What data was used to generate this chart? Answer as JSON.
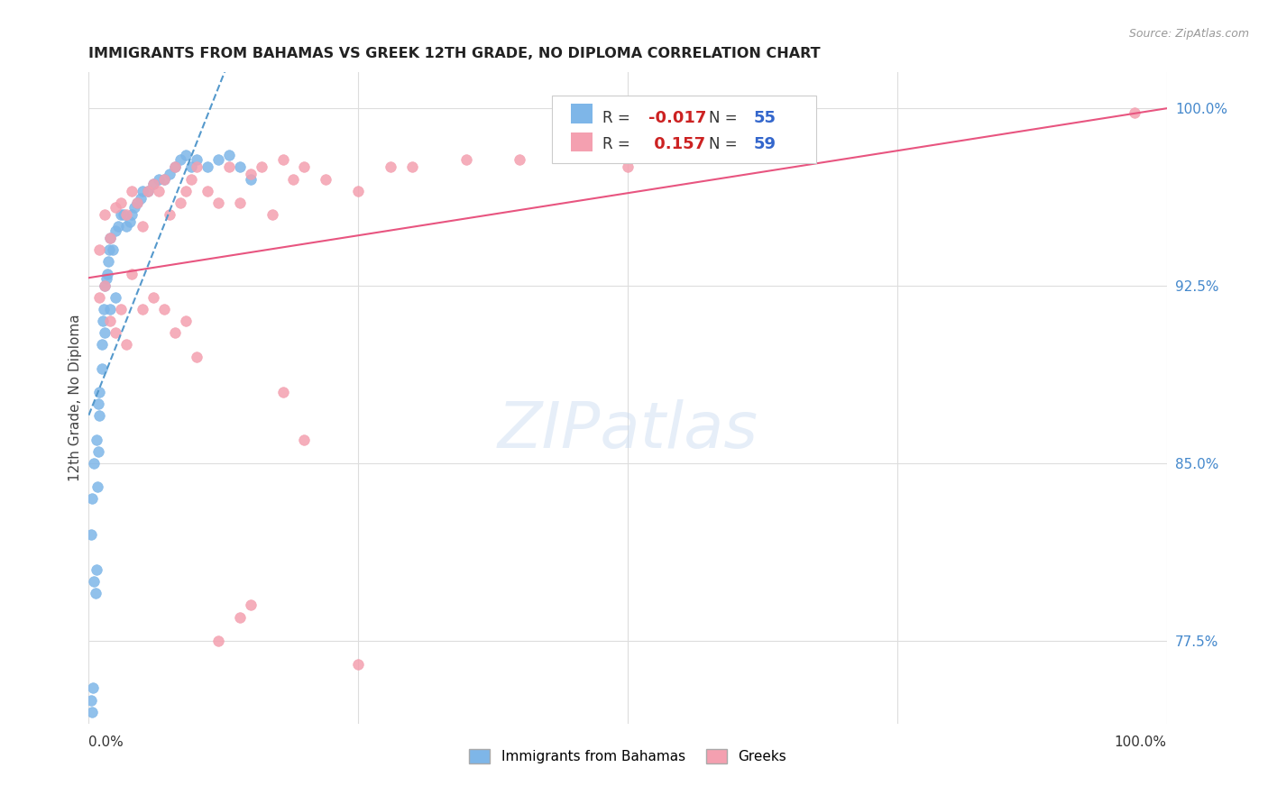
{
  "title": "IMMIGRANTS FROM BAHAMAS VS GREEK 12TH GRADE, NO DIPLOMA CORRELATION CHART",
  "source": "Source: ZipAtlas.com",
  "ylabel": "12th Grade, No Diploma",
  "yticks": [
    77.5,
    85.0,
    92.5,
    100.0
  ],
  "ytick_labels": [
    "77.5%",
    "85.0%",
    "92.5%",
    "100.0%"
  ],
  "xmin": 0.0,
  "xmax": 1.0,
  "ymin": 74.0,
  "ymax": 101.5,
  "bahamas_R": -0.017,
  "bahamas_N": 55,
  "greek_R": 0.157,
  "greek_N": 59,
  "bahamas_color": "#7eb6e8",
  "greek_color": "#f4a0b0",
  "trend_bahamas_color": "#5599cc",
  "trend_greek_color": "#e85580",
  "legend_label_bahamas": "Immigrants from Bahamas",
  "legend_label_greek": "Greeks",
  "watermark": "ZIPatlas",
  "bahamas_x": [
    0.002,
    0.003,
    0.004,
    0.005,
    0.006,
    0.007,
    0.008,
    0.009,
    0.01,
    0.012,
    0.013,
    0.014,
    0.015,
    0.016,
    0.017,
    0.018,
    0.019,
    0.02,
    0.022,
    0.025,
    0.027,
    0.03,
    0.032,
    0.035,
    0.038,
    0.04,
    0.042,
    0.045,
    0.048,
    0.05,
    0.055,
    0.06,
    0.065,
    0.07,
    0.075,
    0.08,
    0.085,
    0.09,
    0.095,
    0.1,
    0.11,
    0.12,
    0.13,
    0.14,
    0.15,
    0.002,
    0.003,
    0.005,
    0.007,
    0.009,
    0.01,
    0.012,
    0.015,
    0.02,
    0.025
  ],
  "bahamas_y": [
    75.0,
    74.5,
    75.5,
    80.0,
    79.5,
    80.5,
    84.0,
    85.5,
    87.0,
    90.0,
    91.0,
    91.5,
    92.5,
    92.8,
    93.0,
    93.5,
    94.0,
    94.5,
    94.0,
    94.8,
    95.0,
    95.5,
    95.5,
    95.0,
    95.2,
    95.5,
    95.8,
    96.0,
    96.2,
    96.5,
    96.5,
    96.8,
    97.0,
    97.0,
    97.2,
    97.5,
    97.8,
    98.0,
    97.5,
    97.8,
    97.5,
    97.8,
    98.0,
    97.5,
    97.0,
    82.0,
    83.5,
    85.0,
    86.0,
    87.5,
    88.0,
    89.0,
    90.5,
    91.5,
    92.0
  ],
  "greek_x": [
    0.01,
    0.015,
    0.02,
    0.025,
    0.03,
    0.035,
    0.04,
    0.045,
    0.05,
    0.055,
    0.06,
    0.065,
    0.07,
    0.075,
    0.08,
    0.085,
    0.09,
    0.095,
    0.1,
    0.11,
    0.12,
    0.13,
    0.14,
    0.15,
    0.16,
    0.17,
    0.18,
    0.19,
    0.2,
    0.22,
    0.25,
    0.28,
    0.3,
    0.35,
    0.4,
    0.45,
    0.5,
    0.55,
    0.6,
    0.01,
    0.015,
    0.02,
    0.025,
    0.03,
    0.035,
    0.04,
    0.05,
    0.06,
    0.07,
    0.08,
    0.09,
    0.1,
    0.12,
    0.14,
    0.15,
    0.18,
    0.2,
    0.25,
    0.97
  ],
  "greek_y": [
    94.0,
    95.5,
    94.5,
    95.8,
    96.0,
    95.5,
    96.5,
    96.0,
    95.0,
    96.5,
    96.8,
    96.5,
    97.0,
    95.5,
    97.5,
    96.0,
    96.5,
    97.0,
    97.5,
    96.5,
    96.0,
    97.5,
    96.0,
    97.2,
    97.5,
    95.5,
    97.8,
    97.0,
    97.5,
    97.0,
    96.5,
    97.5,
    97.5,
    97.8,
    97.8,
    98.0,
    97.5,
    98.0,
    98.5,
    92.0,
    92.5,
    91.0,
    90.5,
    91.5,
    90.0,
    93.0,
    91.5,
    92.0,
    91.5,
    90.5,
    91.0,
    89.5,
    77.5,
    78.5,
    79.0,
    88.0,
    86.0,
    76.5,
    99.8
  ]
}
